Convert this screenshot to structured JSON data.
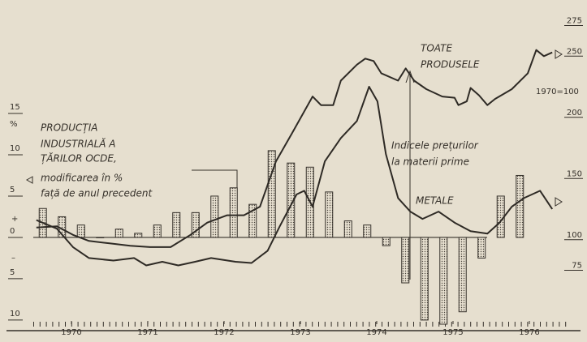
{
  "chart_data": {
    "type": "bar",
    "annotations": [
      "PRODUCȚIA",
      "INDUSTRIALĂ A",
      "ȚĂRILOR OCDE,",
      "modificarea în %",
      "față de anul precedent",
      "TOATE",
      "PRODUSELE",
      "1970=100",
      "Indicele prețurilor",
      "la materii prime",
      "METALE",
      "+",
      "–"
    ],
    "ylabel": "%",
    "xlim": [
      1970,
      1977
    ],
    "xticks": [
      {
        "value": 1970.5,
        "label": "1970"
      },
      {
        "value": 1971.5,
        "label": "1971"
      },
      {
        "value": 1972.5,
        "label": "1972"
      },
      {
        "value": 1973.5,
        "label": "1973"
      },
      {
        "value": 1974.5,
        "label": "1974"
      },
      {
        "value": 1975.5,
        "label": "1975"
      },
      {
        "value": 1976.5,
        "label": "1976"
      }
    ],
    "ylim": [
      -10.5,
      15
    ],
    "yticks": [
      {
        "value": -10,
        "label": "10"
      },
      {
        "value": -5,
        "label": "5"
      },
      0,
      5,
      10,
      15
    ],
    "y2lim": [
      31,
      276
    ],
    "y2ticks": [
      75,
      100,
      150,
      200,
      250,
      275
    ],
    "series": [
      {
        "type": "bar",
        "axis": "y",
        "color": "#35302a",
        "x": [
          1970.125,
          1970.375,
          1970.625,
          1970.875,
          1971.125,
          1971.375,
          1971.625,
          1971.875,
          1972.125,
          1972.375,
          1972.625,
          1972.875,
          1973.125,
          1973.375,
          1973.625,
          1973.875,
          1974.125,
          1974.375,
          1974.625,
          1974.875,
          1975.125,
          1975.375,
          1975.625,
          1975.875,
          1976.125,
          1976.375
        ],
        "values": [
          3.5,
          2.5,
          1.5,
          0,
          1,
          0.5,
          1.5,
          3,
          3,
          5,
          6,
          4,
          10.5,
          9,
          8.5,
          5.5,
          2,
          1.5,
          -1,
          -5.5,
          -10,
          -10.5,
          -9,
          -2.5,
          5,
          7.5
        ]
      },
      {
        "type": "line",
        "axis": "y2",
        "color": "#2e2a25",
        "x": [
          1970.04,
          1970.31,
          1970.52,
          1970.73,
          1971.0,
          1971.27,
          1971.53,
          1971.8,
          1972.06,
          1972.28,
          1972.54,
          1972.76,
          1972.97,
          1973.18,
          1973.39,
          1973.66,
          1973.77,
          1973.93,
          1974.03,
          1974.24,
          1974.35,
          1974.46,
          1974.56,
          1974.78,
          1974.88,
          1974.99,
          1975.15,
          1975.36,
          1975.52,
          1975.57,
          1975.68,
          1975.73,
          1975.84,
          1975.95,
          1976.05,
          1976.27,
          1976.48,
          1976.59,
          1976.69,
          1976.8
        ],
        "values": [
          110,
          111,
          104,
          99,
          97,
          95,
          94,
          94,
          104,
          114,
          120,
          120,
          127,
          164,
          187,
          217,
          210,
          210,
          230,
          243,
          248,
          246,
          236,
          230,
          240,
          230,
          223,
          217,
          216,
          210,
          213,
          224,
          218,
          210,
          215,
          223,
          236,
          255,
          250,
          253
        ]
      },
      {
        "type": "line",
        "axis": "y2",
        "color": "#2e2a25",
        "x": [
          1970.04,
          1970.31,
          1970.52,
          1970.73,
          1971.05,
          1971.32,
          1971.48,
          1971.69,
          1971.9,
          1972.12,
          1972.33,
          1972.65,
          1972.86,
          1973.07,
          1973.23,
          1973.45,
          1973.55,
          1973.66,
          1973.82,
          1974.03,
          1974.24,
          1974.4,
          1974.51,
          1974.62,
          1974.78,
          1974.94,
          1975.1,
          1975.31,
          1975.52,
          1975.73,
          1975.95,
          1976.11,
          1976.27,
          1976.43,
          1976.64,
          1976.8
        ],
        "values": [
          116,
          109,
          94,
          85,
          83,
          85,
          79,
          82,
          79,
          82,
          85,
          82,
          81,
          91,
          111,
          137,
          140,
          127,
          164,
          183,
          197,
          225,
          213,
          170,
          134,
          123,
          117,
          123,
          114,
          107,
          105,
          114,
          127,
          134,
          140,
          125
        ]
      }
    ]
  }
}
